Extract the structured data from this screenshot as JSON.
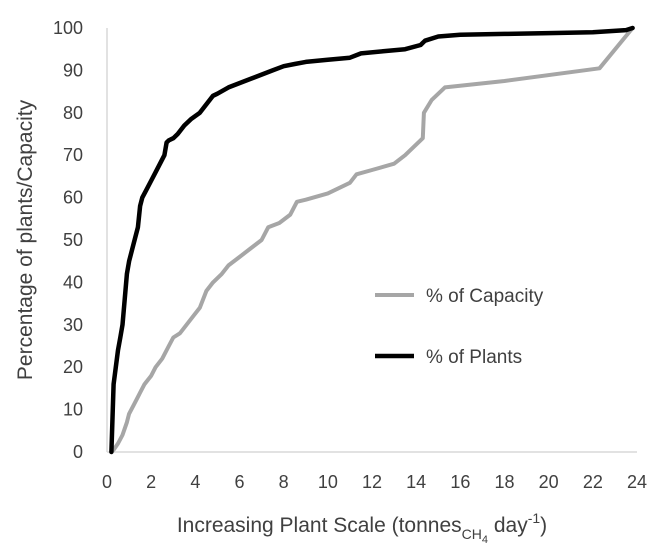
{
  "chart_data": {
    "type": "line",
    "title": "",
    "xlabel_main": "Increasing Plant Scale (tonnes",
    "xlabel_sub": "CH",
    "xlabel_subsub": "4",
    "xlabel_mid": " day",
    "xlabel_sup": "-1",
    "xlabel_end": ")",
    "ylabel": "Percentage of plants/Capacity",
    "xlim": [
      0,
      24
    ],
    "ylim": [
      0,
      100
    ],
    "xticks": [
      0,
      2,
      4,
      6,
      8,
      10,
      12,
      14,
      16,
      18,
      20,
      22,
      24
    ],
    "yticks": [
      0,
      10,
      20,
      30,
      40,
      50,
      60,
      70,
      80,
      90,
      100
    ],
    "grid": false,
    "legend_position": "center-right",
    "series": [
      {
        "name": "% of Capacity",
        "color": "#a6a6a6",
        "x": [
          0.3,
          0.5,
          0.7,
          0.9,
          1.0,
          1.2,
          1.4,
          1.5,
          1.7,
          2.0,
          2.2,
          2.5,
          2.8,
          3.0,
          3.3,
          3.6,
          3.9,
          4.2,
          4.5,
          4.8,
          5.2,
          5.5,
          6.0,
          6.5,
          7.0,
          7.3,
          7.8,
          8.3,
          8.6,
          9.0,
          10.0,
          11.0,
          11.3,
          12.0,
          13.0,
          13.5,
          14.3,
          14.35,
          14.7,
          15.3,
          18.0,
          22.3,
          23.8
        ],
        "y": [
          0.5,
          2,
          4,
          7,
          9,
          11,
          13,
          14,
          16,
          18,
          20,
          22,
          25,
          27,
          28,
          30,
          32,
          34,
          38,
          40,
          42,
          44,
          46,
          48,
          50,
          53,
          54,
          56,
          59,
          59.5,
          61,
          63.5,
          65.5,
          66.5,
          68,
          70,
          74,
          80,
          83,
          86,
          87.5,
          90.5,
          100
        ]
      },
      {
        "name": "% of Plants",
        "color": "#000000",
        "x": [
          0.2,
          0.3,
          0.4,
          0.5,
          0.6,
          0.7,
          0.8,
          0.9,
          1.0,
          1.2,
          1.4,
          1.5,
          1.6,
          1.8,
          2.0,
          2.2,
          2.4,
          2.6,
          2.7,
          2.8,
          3.0,
          3.2,
          3.5,
          3.8,
          4.2,
          4.5,
          4.8,
          5.0,
          5.5,
          6.0,
          6.5,
          7.0,
          7.5,
          8.0,
          8.5,
          9.0,
          10.0,
          11.0,
          11.5,
          12.5,
          13.5,
          14.2,
          14.4,
          15.0,
          15.5,
          16.0,
          18.0,
          20.0,
          22.0,
          23.5,
          23.8
        ],
        "y": [
          0,
          16,
          20,
          24,
          27,
          30,
          36,
          42,
          45,
          49,
          53,
          58,
          60,
          62,
          64,
          66,
          68,
          70,
          73,
          73.5,
          74,
          75,
          77,
          78.5,
          80,
          82,
          84,
          84.5,
          86,
          87,
          88,
          89,
          90,
          91,
          91.5,
          92,
          92.5,
          93,
          94,
          94.5,
          95,
          96,
          97,
          98,
          98.2,
          98.4,
          98.6,
          98.8,
          99,
          99.5,
          100
        ]
      }
    ]
  }
}
